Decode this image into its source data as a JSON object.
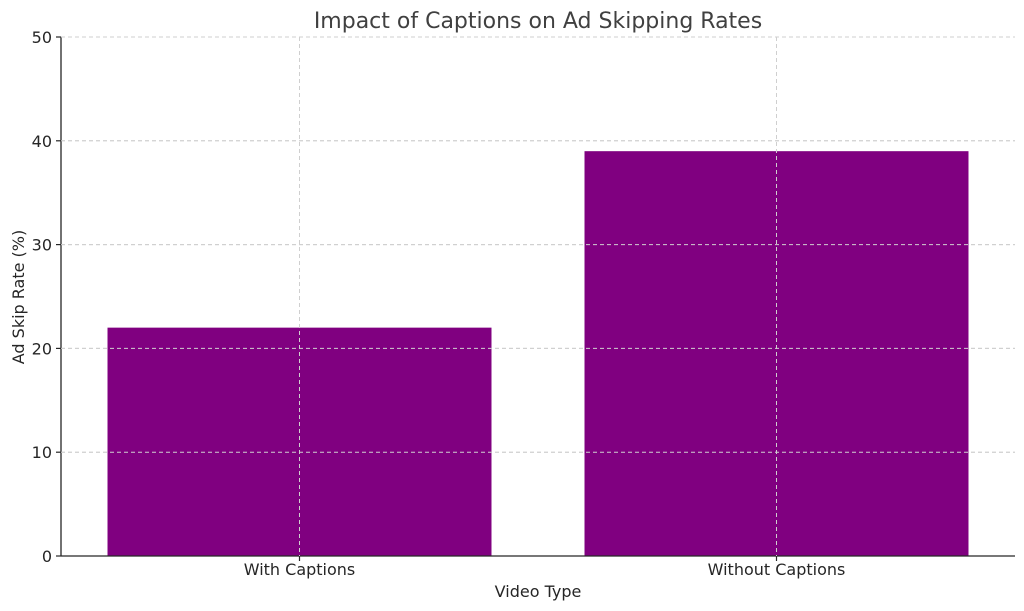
{
  "chart_data": {
    "type": "bar",
    "title": "Impact of Captions on Ad Skipping Rates",
    "xlabel": "Video Type",
    "ylabel": "Ad Skip Rate (%)",
    "categories": [
      "With Captions",
      "Without Captions"
    ],
    "values": [
      22,
      39
    ],
    "ylim": [
      0,
      50
    ],
    "yticks": [
      0,
      10,
      20,
      30,
      40,
      50
    ],
    "bar_color": "#800080",
    "grid": true,
    "legend": false
  }
}
